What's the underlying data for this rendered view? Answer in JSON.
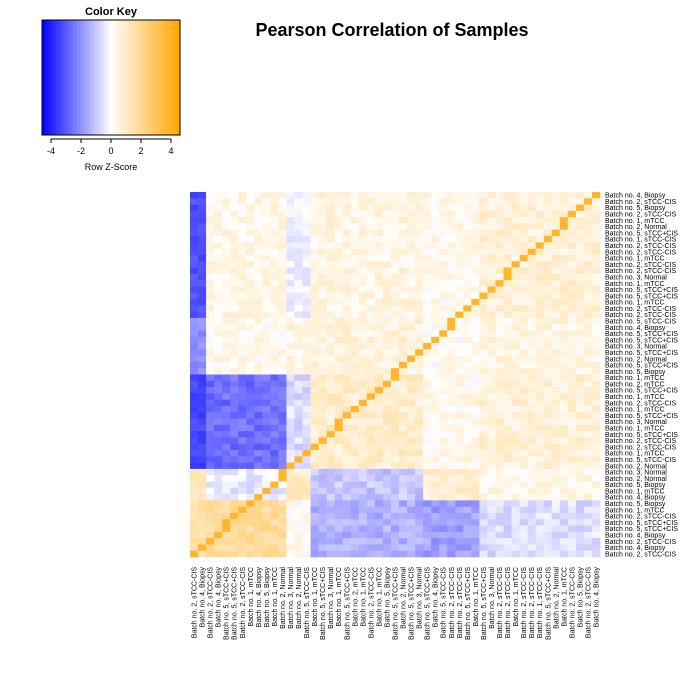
{
  "chart_data": {
    "type": "heatmap",
    "title": "Pearson Correlation of Samples",
    "color_key": {
      "title": "Color Key",
      "xlabel": "Row Z-Score",
      "ticks": [
        -4,
        -2,
        0,
        2,
        4
      ],
      "range": [
        -4.6,
        4.6
      ],
      "colors": [
        "#0000ff",
        "#ffffff",
        "#ffa500"
      ]
    },
    "row_labels": [
      "Batch no. 4, Biopsy",
      "Batch no. 2, sTCC-CIS",
      "Batch no. 5, Biopsy",
      "Batch no. 2, sTCC-CIS",
      "Batch no. 1, mTCC",
      "Batch no. 2, Normal",
      "Batch no. 5, sTCC+CIS",
      "Batch no. 1, sTCC-CIS",
      "Batch no. 2, sTCC-CIS",
      "Batch no. 2, sTCC-CIS",
      "Batch no. 1, mTCC",
      "Batch no. 2, sTCC-CIS",
      "Batch no. 2, sTCC-CIS",
      "Batch no. 3, Normal",
      "Batch no. 1, mTCC",
      "Batch no. 5, sTCC+CIS",
      "Batch no. 5, sTCC+CIS",
      "Batch no. 1, mTCC",
      "Batch no. 2, sTCC-CIS",
      "Batch no. 2, sTCC-CIS",
      "Batch no. 5, sTCC-CIS",
      "Batch no. 4, Biopsy",
      "Batch no. 5, sTCC+CIS",
      "Batch no. 5, sTCC+CIS",
      "Batch no. 3, Normal",
      "Batch no. 5, sTCC+CIS",
      "Batch no. 2, Normal",
      "Batch no. 5, sTCC+CIS",
      "Batch no. 5, Biopsy",
      "Batch no. 1, mTCC",
      "Batch no. 2, mTCC",
      "Batch no. 5, sTCC+CIS",
      "Batch no. 1, mTCC",
      "Batch no. 2, sTCC-CIS",
      "Batch no. 1, mTCC",
      "Batch no. 5, sTCC+CIS",
      "Batch no. 3, Normal",
      "Batch no. 1, mTCC",
      "Batch no. 5, sTCC+CIS",
      "Batch no. 2, sTCC-CIS",
      "Batch no. 2, sTCC-CIS",
      "Batch no. 1, mTCC",
      "Batch no. 5, sTCC-CIS",
      "Batch no. 2, Normal",
      "Batch no. 3, Normal",
      "Batch no. 2, Normal",
      "Batch no. 5, Biopsy",
      "Batch no. 1, mTCC",
      "Batch no. 4, Biopsy",
      "Batch no. 5, Biopsy",
      "Batch no. 1, mTCC",
      "Batch no. 2, sTCC-CIS",
      "Batch no. 5, sTCC+CIS",
      "Batch no. 5, sTCC+CIS",
      "Batch no. 4, Biopsy",
      "Batch no. 2, sTCC-CIS",
      "Batch no. 4, Biopsy",
      "Batch no. 2, sTCC-CIS"
    ],
    "col_labels": [
      "Batch no. 2, sTCC-CIS",
      "Batch no. 4, Biopsy",
      "Batch no. 2, sTCC-CIS",
      "Batch no. 4, Biopsy",
      "Batch no. 5, sTCC+CIS",
      "Batch no. 5, sTCC+CIS",
      "Batch no. 2, sTCC-CIS",
      "Batch no. 1, mTCC",
      "Batch no. 4, Biopsy",
      "Batch no. 5, Biopsy",
      "Batch no. 1, mTCC",
      "Batch no. 2, Normal",
      "Batch no. 3, Normal",
      "Batch no. 2, Normal",
      "Batch no. 5, sTCC-CIS",
      "Batch no. 1, mTCC",
      "Batch no. 5, sTCC+CIS",
      "Batch no. 3, Normal",
      "Batch no. 1, mTCC",
      "Batch no. 5, sTCC+CIS",
      "Batch no. 2, mTCC",
      "Batch no. 1, mTCC",
      "Batch no. 2, sTCC-CIS",
      "Batch no. 1, mTCC",
      "Batch no. 5, Biopsy",
      "Batch no. 5, sTCC+CIS",
      "Batch no. 2, Normal",
      "Batch no. 5, sTCC+CIS",
      "Batch no. 3, Normal",
      "Batch no. 5, sTCC+CIS",
      "Batch no. 4, Biopsy",
      "Batch no. 5, sTCC-CIS",
      "Batch no. 2, sTCC-CIS",
      "Batch no. 2, sTCC-CIS",
      "Batch no. 5, sTCC+CIS",
      "Batch no. 1, mTCC",
      "Batch no. 5, sTCC+CIS",
      "Batch no. 3, Normal",
      "Batch no. 2, sTCC-CIS",
      "Batch no. 2, sTCC-CIS",
      "Batch no. 1, mTCC",
      "Batch no. 2, sTCC-CIS",
      "Batch no. 2, sTCC-CIS",
      "Batch no. 1, sTCC-CIS",
      "Batch no. 5, sTCC+CIS",
      "Batch no. 2, Normal",
      "Batch no. 1, mTCC",
      "Batch no. 2, sTCC-CIS",
      "Batch no. 5, Biopsy",
      "Batch no. 2, sTCC-CIS",
      "Batch no. 4, Biopsy"
    ],
    "clusters": {
      "row": [
        [
          0,
          19
        ],
        [
          20,
          28
        ],
        [
          29,
          43
        ],
        [
          44,
          48
        ],
        [
          49,
          57
        ]
      ],
      "col": [
        [
          0,
          11
        ],
        [
          12,
          14
        ],
        [
          15,
          28
        ],
        [
          29,
          35
        ],
        [
          36,
          50
        ]
      ]
    },
    "block_z": [
      [
        0.4,
        -0.2,
        0.5,
        0.3,
        0.7
      ],
      [
        0.3,
        0.5,
        0.6,
        0.2,
        0.5
      ],
      [
        -2.6,
        -0.6,
        0.9,
        0.3,
        0.7
      ],
      [
        -0.4,
        1.1,
        -1.0,
        0.8,
        0.4
      ],
      [
        1.8,
        0.2,
        -1.4,
        -1.7,
        -0.6
      ]
    ],
    "first_col_z": [
      -3.2,
      -2.0,
      -3.4,
      1.2,
      1.5
    ],
    "diagonal_z": 3.8
  }
}
